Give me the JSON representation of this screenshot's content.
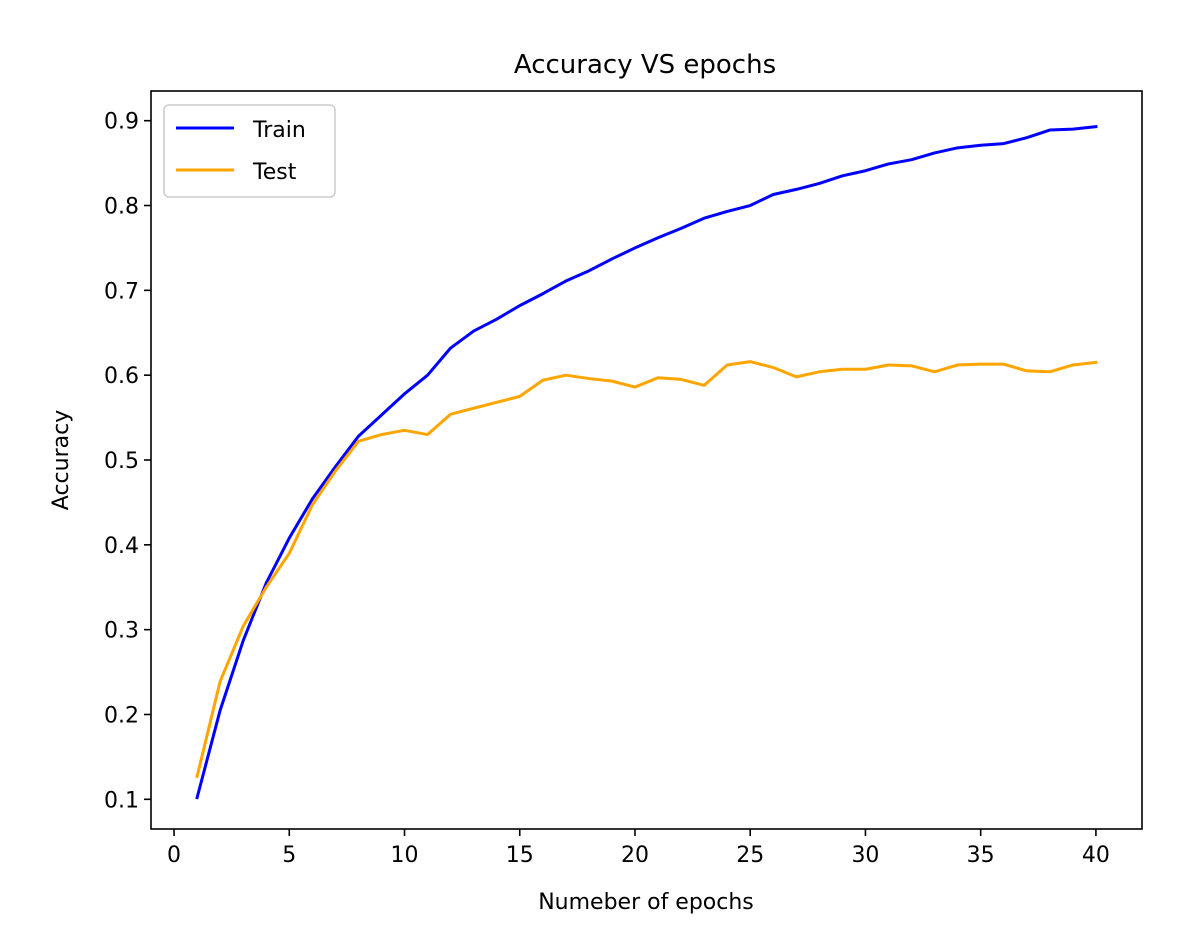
{
  "chart_data": {
    "type": "line",
    "title": "Accuracy VS epochs",
    "xlabel": "Numeber of epochs",
    "ylabel": "Accuracy",
    "xlim": [
      -1,
      42
    ],
    "ylim": [
      0.065,
      0.935
    ],
    "xticks": [
      0,
      5,
      10,
      15,
      20,
      25,
      30,
      35,
      40
    ],
    "yticks": [
      0.1,
      0.2,
      0.3,
      0.4,
      0.5,
      0.6,
      0.7,
      0.8,
      0.9
    ],
    "grid": false,
    "legend_position": "top-left",
    "x": [
      1,
      2,
      3,
      4,
      5,
      6,
      7,
      8,
      9,
      10,
      11,
      12,
      13,
      14,
      15,
      16,
      17,
      18,
      19,
      20,
      21,
      22,
      23,
      24,
      25,
      26,
      27,
      28,
      29,
      30,
      31,
      32,
      33,
      34,
      35,
      36,
      37,
      38,
      39,
      40
    ],
    "series": [
      {
        "name": "Train",
        "color": "#0000ff",
        "values": [
          0.102,
          0.205,
          0.287,
          0.355,
          0.408,
          0.454,
          0.492,
          0.528,
          0.553,
          0.578,
          0.6,
          0.632,
          0.652,
          0.666,
          0.682,
          0.696,
          0.711,
          0.723,
          0.737,
          0.75,
          0.762,
          0.773,
          0.785,
          0.793,
          0.8,
          0.813,
          0.819,
          0.826,
          0.835,
          0.841,
          0.849,
          0.854,
          0.862,
          0.868,
          0.871,
          0.873,
          0.88,
          0.889,
          0.89,
          0.893
        ]
      },
      {
        "name": "Test",
        "color": "#ffa500",
        "values": [
          0.127,
          0.239,
          0.304,
          0.35,
          0.39,
          0.447,
          0.487,
          0.522,
          0.53,
          0.535,
          0.53,
          0.554,
          0.561,
          0.568,
          0.575,
          0.594,
          0.6,
          0.596,
          0.593,
          0.586,
          0.597,
          0.595,
          0.588,
          0.612,
          0.616,
          0.609,
          0.598,
          0.604,
          0.607,
          0.607,
          0.612,
          0.611,
          0.604,
          0.612,
          0.613,
          0.613,
          0.605,
          0.604,
          0.612,
          0.615
        ]
      }
    ]
  }
}
